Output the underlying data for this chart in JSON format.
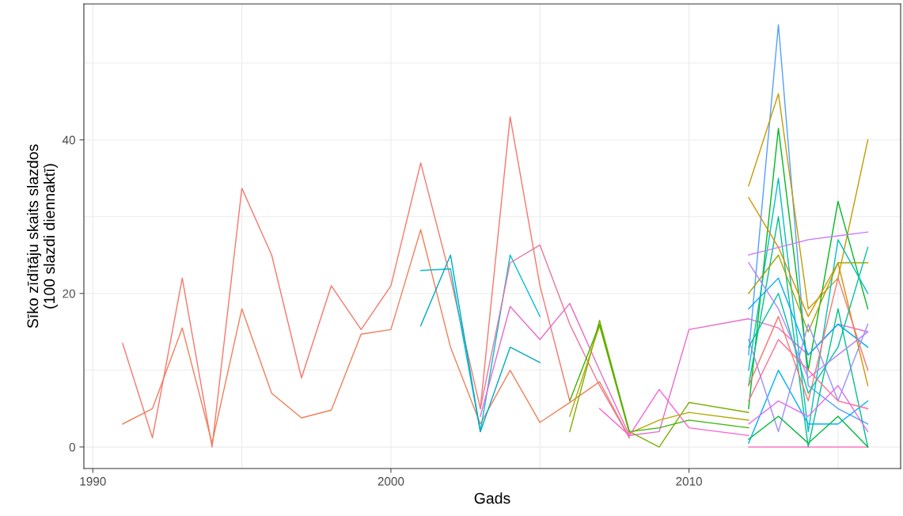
{
  "chart_data": {
    "type": "line",
    "xlabel": "Gads",
    "ylabel": "Sīko zīdītāju skaits slazdos\n(100 slazdi diennaktī)",
    "xlim": [
      1989.7,
      2017.1
    ],
    "ylim": [
      -2.8,
      57.7
    ],
    "xticks": [
      1990,
      {
        "value": 1995,
        "label": null
      },
      2000,
      {
        "value": 2005,
        "label": null
      },
      2010,
      {
        "value": 2015,
        "label": null
      }
    ],
    "yticks": [
      0,
      {
        "value": 10,
        "label": null
      },
      20,
      {
        "value": 30,
        "label": null
      },
      40,
      {
        "value": 50,
        "label": null
      }
    ],
    "grid": true,
    "series": [
      {
        "color": "#F8766D",
        "x": [
          1991,
          1992,
          1993,
          1994,
          1995,
          1996,
          1997,
          1998,
          1999,
          2000,
          2001,
          2002,
          2003,
          2004,
          2005,
          2006
        ],
        "values": [
          13.5,
          1.2,
          22,
          0,
          33.7,
          25,
          9,
          21,
          15.3,
          21,
          37,
          22,
          5,
          43,
          21,
          6
        ]
      },
      {
        "color": "#F07F5A",
        "x": [
          1991,
          1992,
          1993,
          1994,
          1995,
          1996,
          1997,
          1998,
          1999,
          2000,
          2001,
          2002,
          2003,
          2004,
          2005,
          2006,
          2007,
          2008
        ],
        "values": [
          3,
          5,
          15.5,
          0.5,
          18,
          7,
          3.8,
          4.8,
          14.7,
          15.3,
          28.3,
          13,
          3,
          10,
          3.2,
          5.8,
          8.5,
          1.2
        ]
      },
      {
        "color": "#00BCD8",
        "x": [
          2001,
          2002,
          2003,
          2004,
          2005
        ],
        "values": [
          23,
          23.2,
          2,
          25,
          17
        ]
      },
      {
        "color": "#00ABC0",
        "x": [
          2001,
          2002,
          2003,
          2004,
          2005
        ],
        "values": [
          15.8,
          25,
          2,
          13,
          11
        ]
      },
      {
        "color": "#E76BC9",
        "x": [
          2003,
          2004,
          2005,
          2006,
          2007,
          2008,
          2009,
          2010,
          2012,
          2013,
          2014,
          2015,
          2016
        ],
        "values": [
          4,
          18.3,
          14,
          18.7,
          10,
          1.5,
          2,
          15.3,
          16.7,
          15.5,
          12,
          16,
          15
        ]
      },
      {
        "color": "#E8779A",
        "x": [
          2003,
          2004,
          2005,
          2006,
          2007,
          2008
        ],
        "values": [
          5,
          24,
          26.3,
          16,
          8,
          1.2
        ]
      },
      {
        "color": "#7CAE00",
        "x": [
          2006,
          2007,
          2008,
          2009,
          2010,
          2012
        ],
        "values": [
          2,
          16.5,
          2,
          0,
          5.8,
          4.5
        ]
      },
      {
        "color": "#B4A800",
        "x": [
          2006,
          2007,
          2008,
          2009,
          2010,
          2012
        ],
        "values": [
          4,
          15.8,
          1.8,
          3.5,
          4.5,
          3.5
        ]
      },
      {
        "color": "#39B600",
        "x": [
          2006,
          2007,
          2008,
          2009,
          2010,
          2012
        ],
        "values": [
          6,
          16,
          2,
          2.5,
          3.5,
          2.5
        ]
      },
      {
        "color": "#FB61D7",
        "x": [
          2007,
          2008,
          2009,
          2010,
          2012
        ],
        "values": [
          5,
          1.5,
          7.5,
          2.5,
          1.5
        ]
      },
      {
        "color": "#529EFF",
        "x": [
          2012,
          2013,
          2014,
          2015,
          2016
        ],
        "values": [
          12,
          55,
          8,
          5,
          3
        ]
      },
      {
        "color": "#C49A00",
        "x": [
          2012,
          2013,
          2014,
          2015,
          2016
        ],
        "values": [
          34,
          46,
          18,
          22,
          40
        ]
      },
      {
        "color": "#00B81F",
        "x": [
          2012,
          2013,
          2014,
          2015,
          2016
        ],
        "values": [
          5,
          41.5,
          10,
          32,
          18
        ]
      },
      {
        "color": "#00BFC4",
        "x": [
          2012,
          2013,
          2014,
          2015,
          2016
        ],
        "values": [
          10,
          35,
          2,
          27,
          20
        ]
      },
      {
        "color": "#00C08B",
        "x": [
          2012,
          2013,
          2014,
          2015,
          2016
        ],
        "values": [
          8,
          30,
          0,
          18,
          0
        ]
      },
      {
        "color": "#D89000",
        "x": [
          2012,
          2013,
          2014,
          2015,
          2016
        ],
        "values": [
          32.5,
          26,
          17,
          24,
          8
        ]
      },
      {
        "color": "#C77CFF",
        "x": [
          2012,
          2013,
          2014,
          2015,
          2016
        ],
        "values": [
          25,
          26,
          27,
          27.5,
          28
        ]
      },
      {
        "color": "#A3A500",
        "x": [
          2012,
          2013,
          2014,
          2015,
          2016
        ],
        "values": [
          20,
          25,
          15,
          24,
          24
        ]
      },
      {
        "color": "#00A9FF",
        "x": [
          2012,
          2013,
          2014,
          2015,
          2016
        ],
        "values": [
          18,
          22,
          12,
          16,
          13
        ]
      },
      {
        "color": "#FF62BC",
        "x": [
          2012,
          2013,
          2014,
          2015,
          2016
        ],
        "values": [
          0,
          0,
          0,
          0,
          0
        ]
      },
      {
        "color": "#00B0F6",
        "x": [
          2012,
          2013,
          2014,
          2015,
          2016
        ],
        "values": [
          0.5,
          10,
          3,
          3,
          6
        ]
      },
      {
        "color": "#9590FF",
        "x": [
          2012,
          2013,
          2014,
          2015,
          2016
        ],
        "values": [
          14,
          2,
          16,
          6,
          16
        ]
      },
      {
        "color": "#F8766D",
        "x": [
          2012,
          2013,
          2014,
          2015,
          2016
        ],
        "values": [
          8,
          17,
          6,
          22,
          10
        ]
      },
      {
        "color": "#E76BF3",
        "x": [
          2012,
          2013,
          2014,
          2015,
          2016
        ],
        "values": [
          3,
          6,
          4,
          8,
          2
        ]
      },
      {
        "color": "#00BA38",
        "x": [
          2012,
          2013,
          2014,
          2015,
          2016
        ],
        "values": [
          1,
          4,
          0.5,
          4,
          0
        ]
      },
      {
        "color": "#00C1A3",
        "x": [
          2012,
          2013,
          2014,
          2015,
          2016
        ],
        "values": [
          13,
          20,
          7,
          13,
          26
        ]
      },
      {
        "color": "#B385FF",
        "x": [
          2012,
          2013,
          2014,
          2015,
          2016
        ],
        "values": [
          24,
          18,
          9,
          12,
          15
        ]
      },
      {
        "color": "#FF6C91",
        "x": [
          2012,
          2013,
          2014,
          2015,
          2016
        ],
        "values": [
          6,
          14,
          10,
          6,
          5
        ]
      }
    ]
  }
}
